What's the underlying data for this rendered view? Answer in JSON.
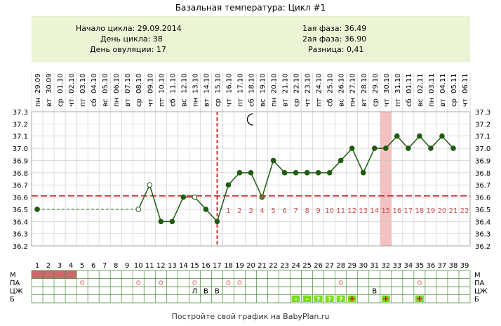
{
  "title": "Базальная температура: Цикл #1",
  "info": {
    "start_label": "Начало цикла:",
    "start_value": "29.09.2014",
    "day_label": "День цикла:",
    "day_value": "38",
    "ovulation_label": "День овуляции:",
    "ovulation_value": "17",
    "phase1_label": "1ая фаза:",
    "phase1_value": "36.49",
    "phase2_label": "2ая фаза:",
    "phase2_value": "36.90",
    "diff_label": "Разница:",
    "diff_value": "0,41"
  },
  "footer": "Постройте свой график на BabyPlan.ru",
  "colors": {
    "line": "#1e5a10",
    "grid": "#c8c8c8",
    "coverline": "#cc0000",
    "ovulation_line": "#cc0000",
    "highlight": "#f5c0c0",
    "menses": "#c86a6a",
    "discharge": "#e06060",
    "test": "#7ddc1f",
    "phase2_number": "#cc5555",
    "info_bg": "#eaf5d6"
  },
  "chart_data": {
    "type": "line",
    "x": [
      1,
      2,
      3,
      4,
      5,
      6,
      7,
      8,
      9,
      10,
      11,
      12,
      13,
      14,
      15,
      16,
      17,
      18,
      19,
      20,
      21,
      22,
      23,
      24,
      25,
      26,
      27,
      28,
      29,
      30,
      31,
      32,
      33,
      34,
      35,
      36,
      37,
      38,
      39
    ],
    "x_tick_labels": [
      "1",
      "2",
      "3",
      "4",
      "5",
      "6",
      "7",
      "8",
      "9",
      "10",
      "11",
      "12",
      "13",
      "14",
      "15",
      "16",
      "17",
      "18",
      "19",
      "20",
      "21",
      "22",
      "23",
      "24",
      "25",
      "26",
      "27",
      "28",
      "29",
      "30",
      "31",
      "32",
      "33",
      "34",
      "35",
      "36",
      "37",
      "38",
      "39"
    ],
    "weekdays": [
      "пн",
      "вт",
      "ср",
      "чт",
      "пт",
      "сб",
      "вс",
      "пн",
      "вт",
      "ср",
      "чт",
      "пт",
      "сб",
      "вс",
      "пн",
      "вт",
      "ср",
      "чт",
      "пт",
      "сб",
      "вс",
      "пн",
      "вт",
      "ср",
      "чт",
      "пт",
      "сб",
      "вс",
      "пн",
      "вт",
      "ср",
      "чт",
      "пт",
      "сб",
      "вс",
      "пн",
      "вт",
      "ср",
      "чт"
    ],
    "dates": [
      "29.09",
      "30.09",
      "01.10",
      "02.10",
      "03.10",
      "04.10",
      "05.10",
      "06.10",
      "07.10",
      "08.10",
      "09.10",
      "10.10",
      "11.10",
      "12.10",
      "13.10",
      "14.10",
      "15.10",
      "16.10",
      "17.10",
      "18.10",
      "19.10",
      "20.10",
      "21.10",
      "22.10",
      "23.10",
      "24.10",
      "25.10",
      "26.10",
      "27.10",
      "28.10",
      "29.10",
      "30.10",
      "31.10",
      "01.11",
      "02.11",
      "03.11",
      "04.11",
      "05.11",
      "06.11"
    ],
    "ylim": [
      36.2,
      37.3
    ],
    "y_ticks": [
      "36.2",
      "36.3",
      "36.4",
      "36.5",
      "36.6",
      "36.7",
      "36.8",
      "36.9",
      "37.0",
      "37.1",
      "37.2",
      "37.3"
    ],
    "temperatures": [
      36.5,
      null,
      null,
      null,
      null,
      null,
      null,
      null,
      null,
      36.5,
      36.7,
      36.4,
      36.4,
      36.6,
      36.6,
      36.5,
      36.4,
      36.7,
      36.8,
      36.8,
      36.6,
      36.9,
      36.8,
      36.8,
      36.8,
      36.8,
      36.8,
      36.9,
      37.0,
      36.8,
      37.0,
      37.0,
      37.1,
      37.0,
      37.1,
      37.0,
      37.1,
      37.0,
      null
    ],
    "open_markers": [
      10,
      11,
      15
    ],
    "ovulation_marker_day": 21,
    "dashed_segment": [
      1,
      10
    ],
    "coverline": 36.61,
    "ovulation_day": 17,
    "highlight_day": 32,
    "moon_day": 20,
    "phase2_day_numbers": [
      "1",
      "2",
      "3",
      "4",
      "5",
      "6",
      "7",
      "8",
      "9",
      "10",
      "11",
      "12",
      "13",
      "14",
      "15",
      "16",
      "17",
      "18",
      "19",
      "20",
      "21",
      "22"
    ],
    "row_labels": [
      "М",
      "ПА",
      "ЦЖ",
      "Б"
    ],
    "menses_days": [
      1,
      2,
      3,
      4
    ],
    "pa_days": [
      5,
      10,
      12,
      15,
      18,
      19,
      28,
      35
    ],
    "cj": [
      {
        "day": 15,
        "text": "Л"
      },
      {
        "day": 16,
        "text": "В"
      },
      {
        "day": 17,
        "text": "В"
      },
      {
        "day": 31,
        "text": "В"
      }
    ],
    "tests": [
      {
        "day": 24,
        "text": "-"
      },
      {
        "day": 25,
        "text": "-"
      },
      {
        "day": 26,
        "text": "?"
      },
      {
        "day": 27,
        "text": "?"
      },
      {
        "day": 28,
        "text": "?"
      },
      {
        "day": 29,
        "text": "+"
      },
      {
        "day": 32,
        "text": "+"
      },
      {
        "day": 35,
        "text": "+"
      }
    ]
  }
}
